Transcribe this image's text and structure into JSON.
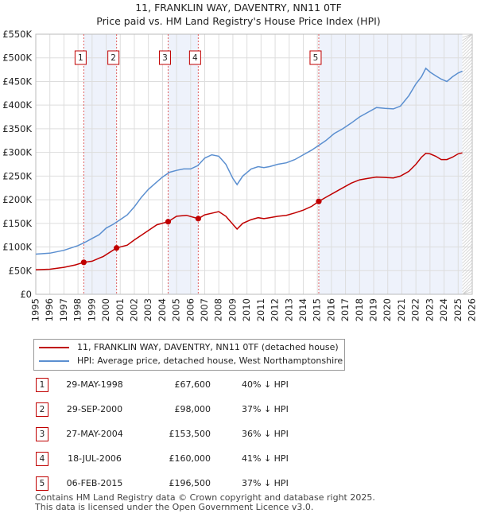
{
  "header": {
    "title": "11, FRANKLIN WAY, DAVENTRY, NN11 0TF",
    "subtitle": "Price paid vs. HM Land Registry's House Price Index (HPI)"
  },
  "legend": {
    "property": "11, FRANKLIN WAY, DAVENTRY, NN11 0TF (detached house)",
    "hpi": "HPI: Average price, detached house, West Northamptonshire"
  },
  "colors": {
    "property": "#c00000",
    "hpi": "#5b8fd0",
    "band": "#eef2fb",
    "grid": "#dddddd"
  },
  "sales": [
    {
      "num": "1",
      "date": "29-MAY-1998",
      "price": "£67,600",
      "hpi": "40% ↓ HPI"
    },
    {
      "num": "2",
      "date": "29-SEP-2000",
      "price": "£98,000",
      "hpi": "37% ↓ HPI"
    },
    {
      "num": "3",
      "date": "27-MAY-2004",
      "price": "£153,500",
      "hpi": "36% ↓ HPI"
    },
    {
      "num": "4",
      "date": "18-JUL-2006",
      "price": "£160,000",
      "hpi": "41% ↓ HPI"
    },
    {
      "num": "5",
      "date": "06-FEB-2015",
      "price": "£196,500",
      "hpi": "37% ↓ HPI"
    }
  ],
  "footer": {
    "line1": "Contains HM Land Registry data © Crown copyright and database right 2025.",
    "line2": "This data is licensed under the Open Government Licence v3.0."
  },
  "chart_data": {
    "type": "line",
    "title": "11, FRANKLIN WAY, DAVENTRY, NN11 0TF",
    "subtitle": "Price paid vs. HM Land Registry's House Price Index (HPI)",
    "xlabel": "",
    "ylabel": "",
    "xlim": [
      1995,
      2026
    ],
    "ylim": [
      0,
      550000
    ],
    "grid": true,
    "legend_position": "below-chart",
    "yticks": [
      0,
      50000,
      100000,
      150000,
      200000,
      250000,
      300000,
      350000,
      400000,
      450000,
      500000,
      550000
    ],
    "ytick_labels": [
      "£0",
      "£50K",
      "£100K",
      "£150K",
      "£200K",
      "£250K",
      "£300K",
      "£350K",
      "£400K",
      "£450K",
      "£500K",
      "£550K"
    ],
    "xticks": [
      1995,
      1996,
      1997,
      1998,
      1999,
      2000,
      2001,
      2002,
      2003,
      2004,
      2005,
      2006,
      2007,
      2008,
      2009,
      2010,
      2011,
      2012,
      2013,
      2014,
      2015,
      2016,
      2017,
      2018,
      2019,
      2020,
      2021,
      2022,
      2023,
      2024,
      2025,
      2026
    ],
    "xtick_labels": [
      "1995",
      "1996",
      "1997",
      "1998",
      "1999",
      "2000",
      "2001",
      "2002",
      "2003",
      "2004",
      "2005",
      "2006",
      "2007",
      "2008",
      "2009",
      "2010",
      "2011",
      "2012",
      "2013",
      "2014",
      "2015",
      "2016",
      "2017",
      "2018",
      "2019",
      "2020",
      "2021",
      "2022",
      "2023",
      "2024",
      "2025",
      "2026"
    ],
    "series": [
      {
        "name": "11, FRANKLIN WAY, DAVENTRY, NN11 0TF (detached house)",
        "color": "#c00000",
        "x": [
          1995.0,
          1996.0,
          1997.0,
          1997.8,
          1998.41,
          1999.0,
          1999.8,
          2000.74,
          2001.5,
          2002.0,
          2002.5,
          2003.0,
          2003.6,
          2004.4,
          2005.0,
          2005.7,
          2006.54,
          2007.0,
          2007.6,
          2008.0,
          2008.5,
          2009.0,
          2009.3,
          2009.7,
          2010.3,
          2010.8,
          2011.2,
          2011.6,
          2012.2,
          2012.8,
          2013.4,
          2014.0,
          2014.6,
          2015.1,
          2015.6,
          2016.2,
          2016.8,
          2017.4,
          2018.0,
          2018.6,
          2019.2,
          2019.8,
          2020.4,
          2020.9,
          2021.5,
          2022.0,
          2022.4,
          2022.7,
          2023.0,
          2023.4,
          2023.8,
          2024.2,
          2024.6,
          2025.0,
          2025.3
        ],
        "values": [
          52000,
          53000,
          57000,
          62000,
          67600,
          70000,
          80000,
          98000,
          104000,
          115000,
          125000,
          135000,
          147000,
          153500,
          165000,
          167000,
          160000,
          168000,
          172000,
          175000,
          165000,
          148000,
          138000,
          150000,
          158000,
          162000,
          160000,
          162000,
          165000,
          167000,
          172000,
          178000,
          186000,
          196500,
          205000,
          215000,
          225000,
          235000,
          242000,
          245000,
          248000,
          247000,
          246000,
          250000,
          260000,
          275000,
          290000,
          298000,
          297000,
          292000,
          285000,
          285000,
          290000,
          297000,
          299000
        ]
      },
      {
        "name": "HPI: Average price, detached house, West Northamptonshire",
        "color": "#5b8fd0",
        "x": [
          1995.0,
          1996.0,
          1997.0,
          1998.0,
          1998.5,
          1999.0,
          1999.5,
          2000.0,
          2000.5,
          2001.0,
          2001.5,
          2002.0,
          2002.5,
          2003.0,
          2003.5,
          2004.0,
          2004.5,
          2005.0,
          2005.5,
          2006.0,
          2006.5,
          2007.0,
          2007.5,
          2008.0,
          2008.5,
          2009.0,
          2009.3,
          2009.7,
          2010.3,
          2010.8,
          2011.2,
          2011.6,
          2012.2,
          2012.8,
          2013.4,
          2014.0,
          2014.6,
          2015.1,
          2015.6,
          2016.2,
          2016.8,
          2017.4,
          2018.0,
          2018.6,
          2019.2,
          2019.8,
          2020.4,
          2020.9,
          2021.5,
          2022.0,
          2022.4,
          2022.7,
          2023.0,
          2023.4,
          2023.8,
          2024.2,
          2024.6,
          2025.0,
          2025.3
        ],
        "values": [
          85000,
          87000,
          93000,
          103000,
          110000,
          118000,
          126000,
          140000,
          148000,
          158000,
          168000,
          185000,
          205000,
          222000,
          235000,
          248000,
          258000,
          262000,
          265000,
          265000,
          272000,
          288000,
          295000,
          292000,
          275000,
          245000,
          232000,
          250000,
          265000,
          270000,
          268000,
          270000,
          275000,
          278000,
          285000,
          295000,
          305000,
          315000,
          325000,
          340000,
          350000,
          362000,
          375000,
          385000,
          395000,
          393000,
          392000,
          398000,
          420000,
          445000,
          460000,
          478000,
          470000,
          462000,
          455000,
          450000,
          460000,
          468000,
          472000
        ]
      }
    ],
    "sale_points": [
      {
        "label": "1",
        "x": 1998.41,
        "value": 67600
      },
      {
        "label": "2",
        "x": 2000.74,
        "value": 98000
      },
      {
        "label": "3",
        "x": 2004.4,
        "value": 153500
      },
      {
        "label": "4",
        "x": 2006.54,
        "value": 160000
      },
      {
        "label": "5",
        "x": 2015.1,
        "value": 196500
      }
    ]
  }
}
